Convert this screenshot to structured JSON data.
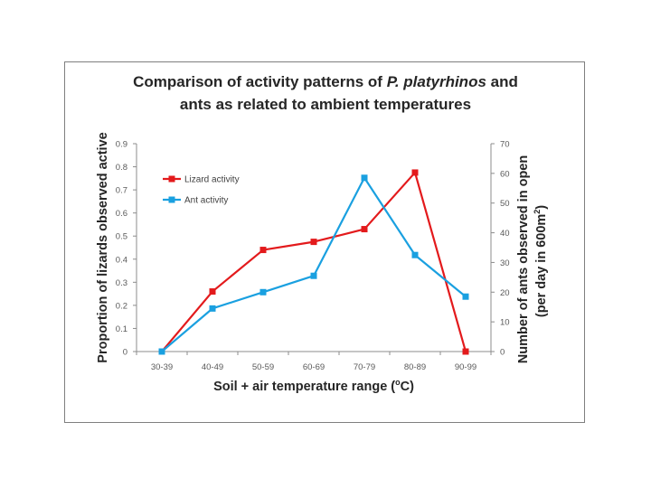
{
  "chart_data": {
    "type": "line",
    "title_parts": [
      {
        "text": "Comparison of activity patterns of ",
        "italic": false
      },
      {
        "text": "P. platyrhinos",
        "italic": true
      },
      {
        "text": " and",
        "italic": false
      }
    ],
    "title_line2": "ants as related to ambient temperatures",
    "categories": [
      "30-39",
      "40-49",
      "50-59",
      "60-69",
      "70-79",
      "80-89",
      "90-99"
    ],
    "xlabel_main": "Soil + air temperature range (",
    "xlabel_sup": "o",
    "xlabel_end": "C)",
    "ylabel_left": "Proportion of lizards observed active",
    "ylabel_right_line1": "Number of ants observed in open",
    "ylabel_right_line2_main": "(per day in 600m",
    "ylabel_right_line2_sup": "2",
    "ylabel_right_line2_end": ")",
    "yleft_ticks": [
      "0",
      "0.1",
      "0.2",
      "0.3",
      "0.4",
      "0.5",
      "0.6",
      "0.7",
      "0.8",
      "0.9"
    ],
    "yleft_lim": [
      0,
      0.9
    ],
    "yright_ticks": [
      "0",
      "10",
      "20",
      "30",
      "40",
      "50",
      "60",
      "70"
    ],
    "yright_lim": [
      0,
      70
    ],
    "series": [
      {
        "name": "Lizard activity",
        "axis": "left",
        "color": "#e31a1c",
        "values": [
          0,
          0.26,
          0.44,
          0.475,
          0.53,
          0.775,
          0
        ]
      },
      {
        "name": "Ant activity",
        "axis": "right",
        "color": "#1aa0e0",
        "values": [
          0,
          14.5,
          20,
          25.5,
          58.5,
          32.5,
          18.5
        ]
      }
    ],
    "legend_position": "upper-left"
  }
}
